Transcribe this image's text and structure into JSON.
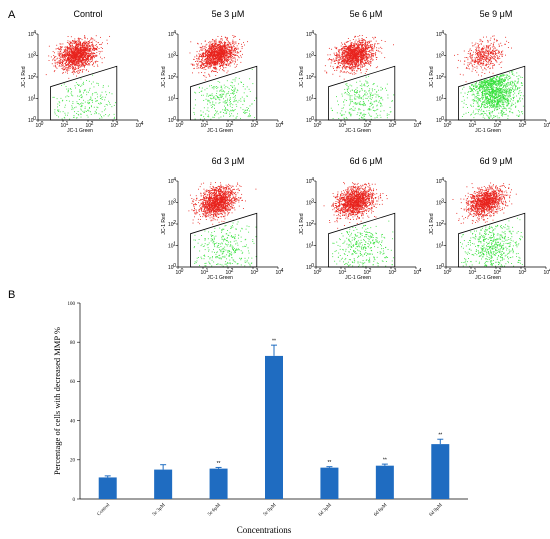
{
  "panel_a_label": "A",
  "panel_b_label": "B",
  "flow": {
    "x_axis_label": "JC-1 Green",
    "y_axis_label": "JC-1 Red",
    "decades": [
      "10",
      "10",
      "10",
      "10",
      "10"
    ],
    "exponents": [
      "0",
      "1",
      "2",
      "3",
      "4"
    ],
    "colors": {
      "red_population": "#e8231d",
      "green_population": "#34e03a",
      "gate": "#000000"
    },
    "plots": [
      {
        "title": "Control",
        "green_fraction": 0.11
      },
      {
        "title": "5e  3 μM",
        "green_fraction": 0.15
      },
      {
        "title": "5e  6 μM",
        "green_fraction": 0.15
      },
      {
        "title": "5e  9 μM",
        "green_fraction": 0.73
      },
      {
        "title": "6d  3 μM",
        "green_fraction": 0.16
      },
      {
        "title": "6d  6 μM",
        "green_fraction": 0.17
      },
      {
        "title": "6d  9 μM",
        "green_fraction": 0.28
      }
    ]
  },
  "chart_data": {
    "type": "bar",
    "ylabel": "Percentage of cells with decreased MMP %",
    "xlabel": "Concentrations",
    "ylim": [
      0,
      100
    ],
    "yticks": [
      0,
      20,
      40,
      60,
      80,
      100
    ],
    "categories": [
      "Control",
      "5e  3μM",
      "5e  6μM",
      "5e  9μM",
      "6d 3μM",
      "6d 6μM",
      "6d 9μM"
    ],
    "values": [
      11,
      15,
      15.5,
      73,
      16,
      17,
      28
    ],
    "errors": [
      0.8,
      2.5,
      0.6,
      5.5,
      0.5,
      0.8,
      2.5
    ],
    "significance": [
      "",
      "",
      "**",
      "**",
      "**",
      "**",
      "**"
    ],
    "bar_color": "#1f6cc1",
    "grid": false
  }
}
